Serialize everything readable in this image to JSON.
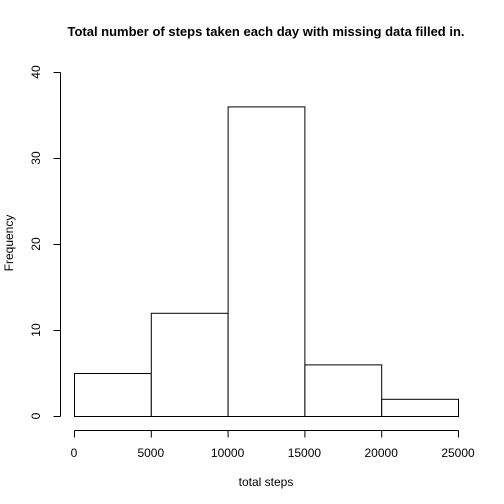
{
  "chart_data": {
    "type": "bar",
    "title": "Total number of steps taken each day with missing data filled in.",
    "xlabel": "total steps",
    "ylabel": "Frequency",
    "bins": [
      {
        "start": 0,
        "end": 5000,
        "count": 5
      },
      {
        "start": 5000,
        "end": 10000,
        "count": 12
      },
      {
        "start": 10000,
        "end": 15000,
        "count": 36
      },
      {
        "start": 15000,
        "end": 20000,
        "count": 6
      },
      {
        "start": 20000,
        "end": 25000,
        "count": 2
      }
    ],
    "xlim": [
      0,
      25000
    ],
    "ylim": [
      0,
      40
    ],
    "x_ticks": [
      0,
      5000,
      10000,
      15000,
      20000,
      25000
    ],
    "x_tick_labels": [
      "0",
      "5000",
      "10000",
      "15000",
      "20000",
      "25000"
    ],
    "y_ticks": [
      0,
      10,
      20,
      30,
      40
    ],
    "y_tick_labels": [
      "0",
      "10",
      "20",
      "30",
      "40"
    ],
    "grid": false,
    "legend": "none",
    "colors": {
      "bar_fill": "#ffffff",
      "bar_stroke": "#000000",
      "background": "#ffffff"
    }
  }
}
